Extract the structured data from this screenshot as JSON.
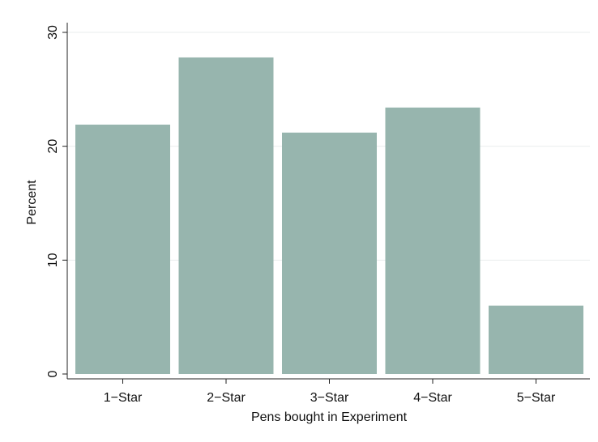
{
  "chart_data": {
    "type": "bar",
    "categories": [
      "1−Star",
      "2−Star",
      "3−Star",
      "4−Star",
      "5−Star"
    ],
    "values": [
      21.9,
      27.8,
      21.2,
      23.4,
      6.0
    ],
    "title": "",
    "xlabel": "Pens bought in Experiment",
    "ylabel": "Percent",
    "ylim": [
      0,
      30
    ],
    "yticks": [
      "0",
      "10",
      "20",
      "30"
    ],
    "grid": true,
    "legend": "none",
    "bar_color": "#97b5ae",
    "grid_color": "#e9eeee"
  }
}
